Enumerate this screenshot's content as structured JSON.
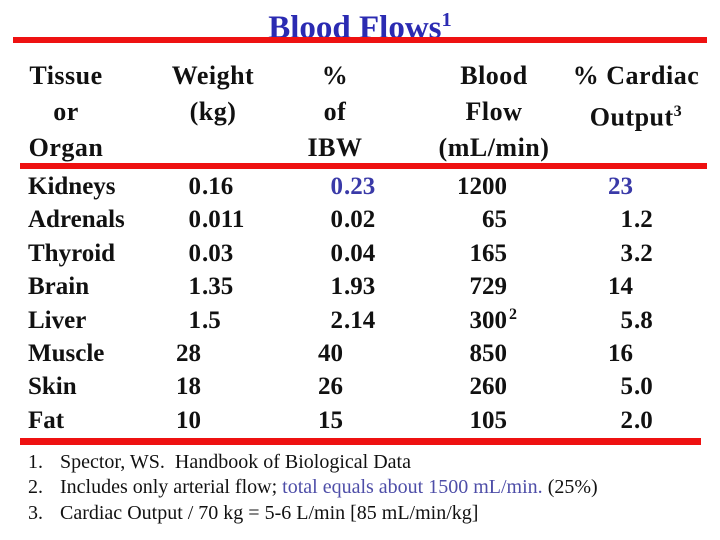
{
  "title": {
    "text": "Blood Flows",
    "sup": "1"
  },
  "colors": {
    "title_blue": "#2B2BB2",
    "accent_blue": "#3A3AA8",
    "note_blue": "#4E4EA8",
    "rule_red": "#EE1111"
  },
  "table": {
    "header": {
      "col1": {
        "line1": "Tissue",
        "line2": "or",
        "line3": "Organ"
      },
      "col2": {
        "line1": "Weight",
        "line2": "(kg)",
        "line3": ""
      },
      "col3": {
        "line1": "%",
        "line2": "of",
        "line3": "IBW"
      },
      "col4": {
        "line1": "Blood",
        "line2": "Flow",
        "line3": "(mL/min)"
      },
      "col5": {
        "line1": "% Cardiac",
        "line2": "Output",
        "line2_sup": "3",
        "line3": ""
      }
    },
    "rows": [
      {
        "organ": "Kidneys",
        "weight": "0.16",
        "ibw": "0.23",
        "flow": "1200",
        "flow_sup": "",
        "cardiac": "23",
        "accent": true
      },
      {
        "organ": "Adrenals",
        "weight": "0.011",
        "ibw": "0.02",
        "flow": "65",
        "flow_sup": "",
        "cardiac": "1.2",
        "accent": false
      },
      {
        "organ": "Thyroid",
        "weight": "0.03",
        "ibw": "0.04",
        "flow": "165",
        "flow_sup": "",
        "cardiac": "3.2",
        "accent": false
      },
      {
        "organ": "Brain",
        "weight": "1.35",
        "ibw": "1.93",
        "flow": "729",
        "flow_sup": "",
        "cardiac": "14",
        "accent": false
      },
      {
        "organ": "Liver",
        "weight": "1.5",
        "ibw": "2.14",
        "flow": "300",
        "flow_sup": "2",
        "cardiac": "5.8",
        "accent": false
      },
      {
        "organ": "Muscle",
        "weight": "28",
        "ibw": "40",
        "flow": "850",
        "flow_sup": "",
        "cardiac": "16",
        "accent": false
      },
      {
        "organ": "Skin",
        "weight": "18",
        "ibw": "26",
        "flow": "260",
        "flow_sup": "",
        "cardiac": "5.0",
        "accent": false
      },
      {
        "organ": "Fat",
        "weight": "10",
        "ibw": "15",
        "flow": "105",
        "flow_sup": "",
        "cardiac": "2.0",
        "accent": false
      }
    ]
  },
  "footnotes": [
    {
      "num": "1.",
      "pre": "Spector, WS.  Handbook of Biological Data",
      "blue": "",
      "post": ""
    },
    {
      "num": "2.",
      "pre": "Includes only arterial flow; ",
      "blue": "total equals about 1500 mL/min.",
      "post": " (25%)"
    },
    {
      "num": "3.",
      "pre": "Cardiac Output / 70 kg = 5-6 L/min [85 mL/min/kg]",
      "blue": "",
      "post": ""
    }
  ]
}
